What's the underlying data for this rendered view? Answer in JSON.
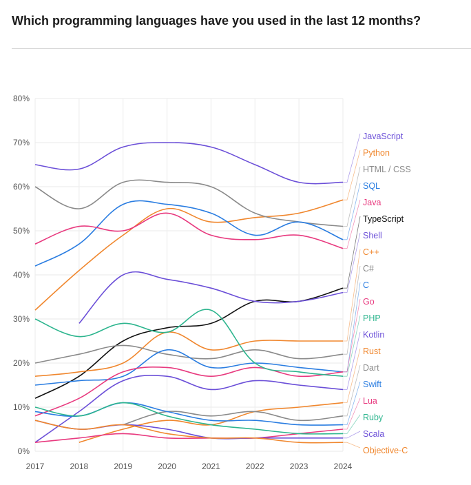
{
  "header": {
    "title": "Which programming languages have you used in the last 12 months?"
  },
  "chart_data": {
    "type": "line",
    "title": "Which programming languages have you used in the last 12 months?",
    "xlabel": "",
    "ylabel": "",
    "x": [
      2017,
      2018,
      2019,
      2020,
      2021,
      2022,
      2023,
      2024
    ],
    "x_tick_labels": [
      "2017",
      "2018",
      "2019",
      "2020",
      "2021",
      "2022",
      "2023",
      "2024"
    ],
    "ylim": [
      0,
      80
    ],
    "y_tick_labels": [
      "0%",
      "10%",
      "20%",
      "30%",
      "40%",
      "50%",
      "60%",
      "70%",
      "80%"
    ],
    "y_ticks": [
      0,
      10,
      20,
      30,
      40,
      50,
      60,
      70,
      80
    ],
    "grid": true,
    "legend": "right",
    "series": [
      {
        "name": "JavaScript",
        "color": "#6b4fd8",
        "values": [
          65,
          64,
          69,
          70,
          69,
          65,
          61,
          61
        ]
      },
      {
        "name": "Python",
        "color": "#f0872e",
        "values": [
          32,
          41,
          49,
          55,
          52,
          53,
          54,
          57
        ]
      },
      {
        "name": "HTML / CSS",
        "color": "#8a8a8a",
        "values": [
          60,
          55,
          61,
          61,
          60,
          54,
          52,
          51
        ]
      },
      {
        "name": "SQL",
        "color": "#2a7de1",
        "values": [
          42,
          47,
          56,
          56,
          54,
          49,
          52,
          48
        ]
      },
      {
        "name": "Java",
        "color": "#e83a7f",
        "values": [
          47,
          51,
          50,
          54,
          49,
          48,
          49,
          46
        ]
      },
      {
        "name": "TypeScript",
        "color": "#111111",
        "values": [
          12,
          17,
          25,
          28,
          29,
          34,
          34,
          37
        ]
      },
      {
        "name": "Shell",
        "color": "#6b4fd8",
        "values": [
          null,
          29,
          40,
          39,
          37,
          34,
          34,
          36
        ]
      },
      {
        "name": "C++",
        "color": "#f0872e",
        "values": [
          17,
          18,
          20,
          27,
          23,
          25,
          25,
          25
        ]
      },
      {
        "name": "C#",
        "color": "#8a8a8a",
        "values": [
          20,
          22,
          24,
          22,
          21,
          23,
          21,
          22
        ]
      },
      {
        "name": "C",
        "color": "#2a7de1",
        "values": [
          15,
          16,
          17,
          23,
          19,
          20,
          19,
          18
        ]
      },
      {
        "name": "Go",
        "color": "#e83a7f",
        "values": [
          8,
          12,
          18,
          19,
          17,
          19,
          17,
          18
        ]
      },
      {
        "name": "PHP",
        "color": "#2db58e",
        "values": [
          30,
          26,
          29,
          27,
          32,
          20,
          18,
          17
        ]
      },
      {
        "name": "Kotlin",
        "color": "#6b4fd8",
        "values": [
          2,
          9,
          16,
          17,
          14,
          16,
          15,
          14
        ]
      },
      {
        "name": "Rust",
        "color": "#f0872e",
        "values": [
          null,
          2,
          5,
          7,
          6,
          9,
          10,
          11
        ]
      },
      {
        "name": "Dart",
        "color": "#8a8a8a",
        "values": [
          null,
          null,
          6,
          9,
          8,
          9,
          7,
          8
        ]
      },
      {
        "name": "Swift",
        "color": "#2a7de1",
        "values": [
          9,
          8,
          11,
          9,
          7,
          7,
          6,
          6
        ]
      },
      {
        "name": "Lua",
        "color": "#e83a7f",
        "values": [
          2,
          3,
          4,
          3,
          3,
          3,
          4,
          5
        ]
      },
      {
        "name": "Ruby",
        "color": "#2db58e",
        "values": [
          10,
          8,
          11,
          8,
          6,
          5,
          4,
          4
        ]
      },
      {
        "name": "Scala",
        "color": "#6b4fd8",
        "values": [
          7,
          5,
          6,
          5,
          3,
          3,
          3,
          3
        ]
      },
      {
        "name": "Objective-C",
        "color": "#f0872e",
        "values": [
          7,
          5,
          6,
          4,
          3,
          3,
          2,
          2
        ]
      }
    ]
  }
}
